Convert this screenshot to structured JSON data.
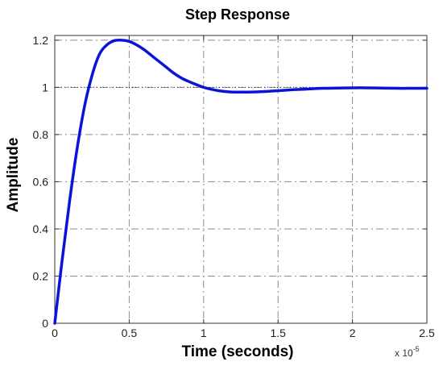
{
  "chart_data": {
    "type": "line",
    "title": "Step Response",
    "xlabel": "Time (seconds)",
    "ylabel": "Amplitude",
    "x_multiplier_label": "x 10",
    "x_multiplier_exponent": "-5",
    "xlim": [
      0,
      2.5
    ],
    "ylim": [
      0,
      1.22
    ],
    "x_ticks": [
      0,
      0.5,
      1,
      1.5,
      2,
      2.5
    ],
    "x_tick_labels": [
      "0",
      "0.5",
      "1",
      "1.5",
      "2",
      "2.5"
    ],
    "y_ticks": [
      0,
      0.2,
      0.4,
      0.6,
      0.8,
      1,
      1.2
    ],
    "y_tick_labels": [
      "0",
      "0.2",
      "0.4",
      "0.6",
      "0.8",
      "1",
      "1.2"
    ],
    "grid": true,
    "reference_line": {
      "y": 1,
      "style": "dotted"
    },
    "series": [
      {
        "color": "#0a14d8",
        "x": [
          0,
          0.05,
          0.1,
          0.15,
          0.2,
          0.25,
          0.3,
          0.35,
          0.4,
          0.45,
          0.5,
          0.55,
          0.6,
          0.65,
          0.7,
          0.75,
          0.8,
          0.85,
          0.9,
          0.95,
          1.0,
          1.05,
          1.1,
          1.15,
          1.2,
          1.25,
          1.3,
          1.4,
          1.5,
          1.6,
          1.7,
          1.8,
          1.9,
          2.0,
          2.1,
          2.2,
          2.3,
          2.4,
          2.5
        ],
        "y": [
          0,
          0.27,
          0.52,
          0.74,
          0.92,
          1.05,
          1.14,
          1.18,
          1.198,
          1.2,
          1.195,
          1.18,
          1.16,
          1.135,
          1.11,
          1.085,
          1.06,
          1.04,
          1.025,
          1.012,
          1.0,
          0.992,
          0.986,
          0.982,
          0.98,
          0.98,
          0.98,
          0.982,
          0.986,
          0.99,
          0.993,
          0.996,
          0.997,
          0.998,
          0.998,
          0.997,
          0.996,
          0.996,
          0.996
        ]
      }
    ]
  }
}
